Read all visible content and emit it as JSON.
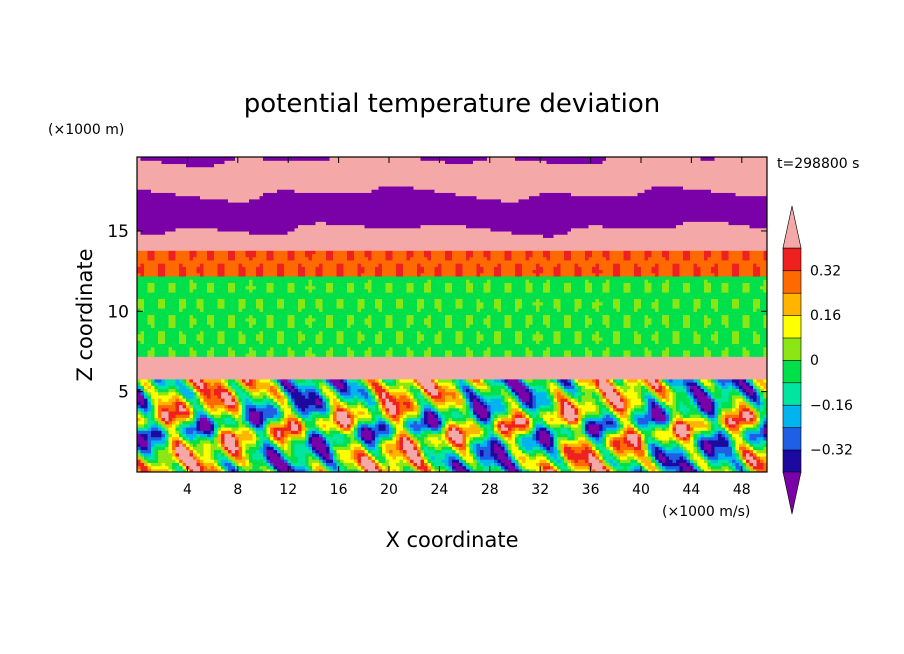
{
  "chart_data": {
    "type": "heatmap",
    "title": "potential temperature deviation",
    "xlabel": "X coordinate",
    "ylabel": "Z coordinate",
    "x_unit": "(×1000 m/s)",
    "y_unit": "(×1000 m)",
    "time_label": "t=298800 s",
    "xlim": [
      0,
      50
    ],
    "ylim": [
      0,
      19.6
    ],
    "x_ticks": [
      4,
      8,
      12,
      16,
      20,
      24,
      28,
      32,
      36,
      40,
      44,
      48
    ],
    "y_ticks": [
      5,
      10,
      15
    ],
    "colorbar": {
      "labels": [
        "0.32",
        "0.16",
        "0",
        "−0.16",
        "−0.32"
      ],
      "label_values": [
        0.32,
        0.16,
        0,
        -0.16,
        -0.32
      ],
      "levels": [
        -0.4,
        -0.32,
        -0.24,
        -0.16,
        -0.08,
        0,
        0.08,
        0.16,
        0.24,
        0.32,
        0.4
      ],
      "colors": [
        "#7a00a8",
        "#1c0aa0",
        "#1e5fe6",
        "#00b4f0",
        "#00e6a0",
        "#00e04a",
        "#8ce614",
        "#ffff00",
        "#ffb400",
        "#ff6a00",
        "#ee2020",
        "#f4a8a8"
      ],
      "extend": "both"
    },
    "bands": [
      {
        "z": [
          0,
          5.8
        ],
        "pattern": "turbulent"
      },
      {
        "z": [
          5.8,
          7.2
        ],
        "value": 0.45
      },
      {
        "z": [
          7.2,
          12.2
        ],
        "value": -0.02
      },
      {
        "z": [
          12.2,
          13.9
        ],
        "value": 0.3
      },
      {
        "z": [
          13.9,
          19.6
        ],
        "pattern": "alternating"
      }
    ]
  }
}
